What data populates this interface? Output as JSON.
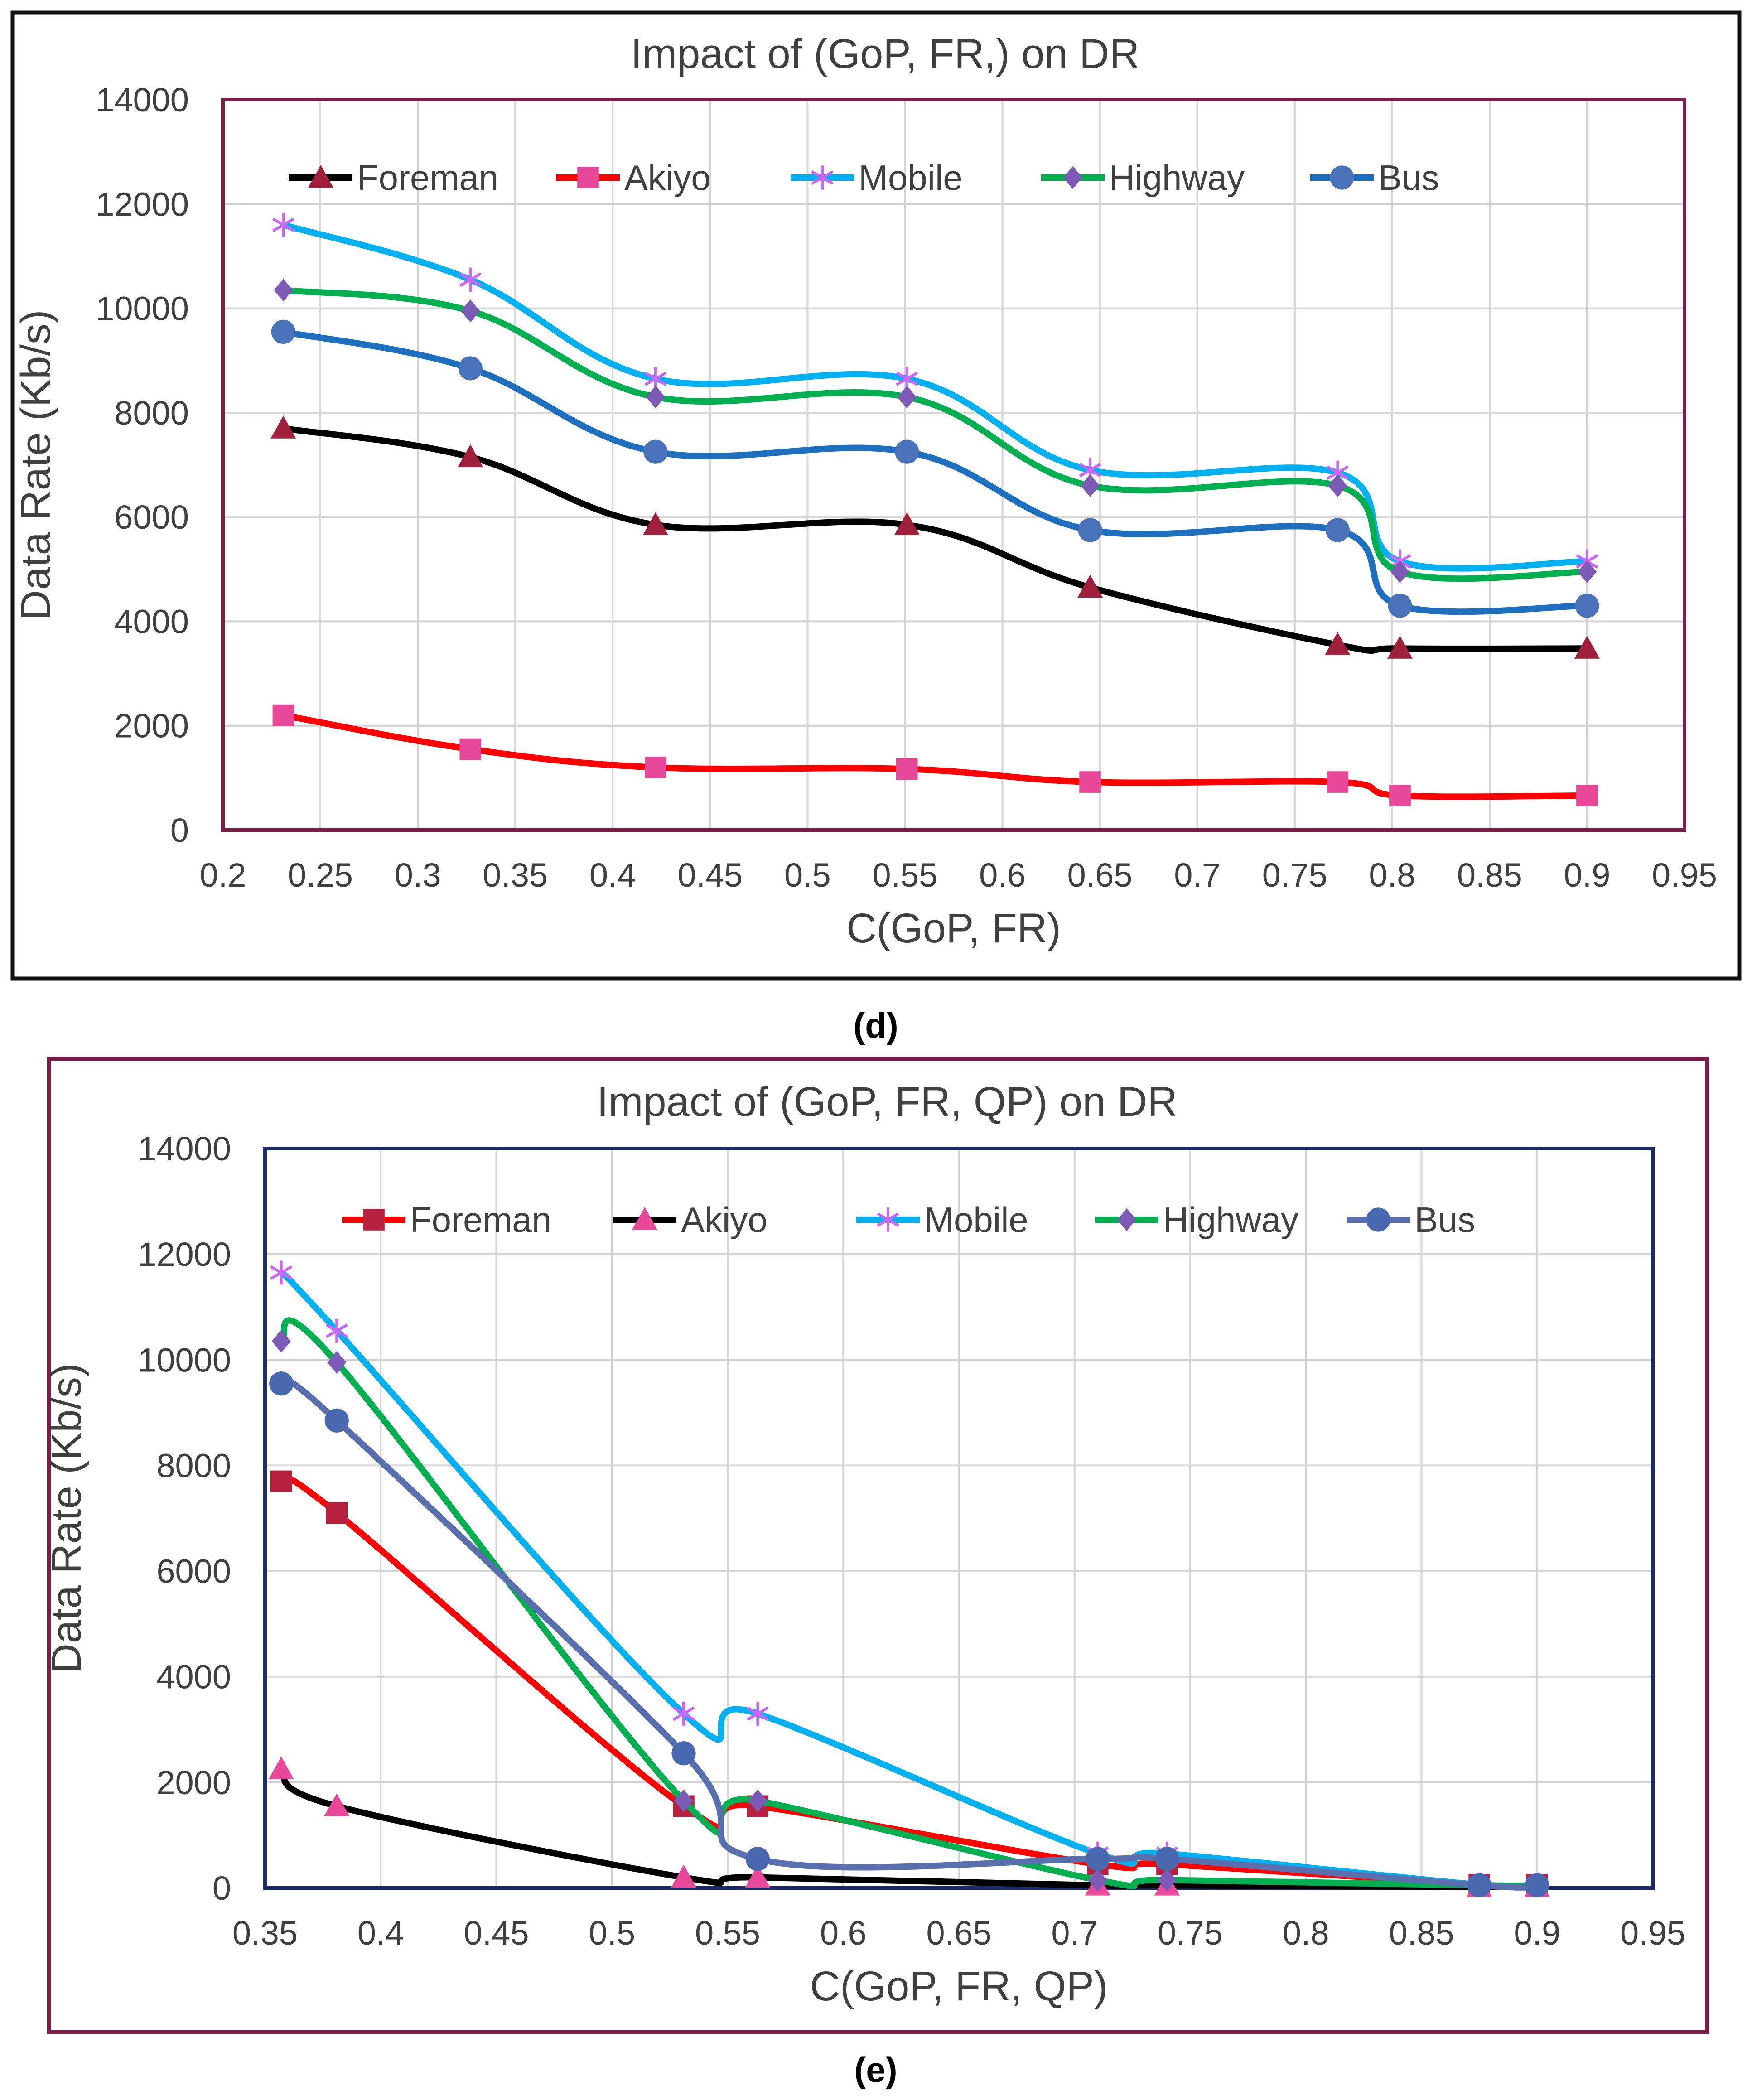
{
  "chart_data": [
    {
      "type": "line",
      "title": "Impact of (GoP, FR,) on DR",
      "xlabel": "C(GoP, FR)",
      "ylabel": "Data Rate (Kb/s)",
      "xlim": [
        0.2,
        0.95
      ],
      "ylim": [
        0,
        14000
      ],
      "xticks": [
        "0.2",
        "0.25",
        "0.3",
        "0.35",
        "0.4",
        "0.45",
        "0.5",
        "0.55",
        "0.6",
        "0.65",
        "0.7",
        "0.75",
        "0.8",
        "0.85",
        "0.9",
        "0.95"
      ],
      "yticks": [
        "0",
        "2000",
        "4000",
        "6000",
        "8000",
        "10000",
        "12000",
        "14000"
      ],
      "grid": true,
      "legend": "top",
      "caption": "(d)",
      "x": [
        0.231,
        0.327,
        0.422,
        0.551,
        0.645,
        0.772,
        0.804,
        0.9
      ],
      "series": [
        {
          "name": "Foreman",
          "color": "#000000",
          "marker": "triangle",
          "marker_color": "#a0203c",
          "values": [
            7700,
            7150,
            5850,
            5850,
            4650,
            3550,
            3480,
            3480
          ]
        },
        {
          "name": "Akiyo",
          "color": "#ff0000",
          "marker": "square",
          "marker_color": "#e8489a",
          "values": [
            2200,
            1550,
            1200,
            1170,
            920,
            920,
            660,
            660
          ]
        },
        {
          "name": "Mobile",
          "color": "#00b0f0",
          "marker": "star",
          "marker_color": "#cc66ff",
          "values": [
            11600,
            10550,
            8650,
            8650,
            6900,
            6850,
            5150,
            5150
          ]
        },
        {
          "name": "Highway",
          "color": "#00b050",
          "marker": "diamond",
          "marker_color": "#7b5bb5",
          "values": [
            10350,
            9950,
            8300,
            8300,
            6600,
            6600,
            4950,
            4950
          ]
        },
        {
          "name": "Bus",
          "color": "#1f6fbf",
          "marker": "circle",
          "marker_color": "#4a72b8",
          "values": [
            9550,
            8850,
            7250,
            7250,
            5750,
            5750,
            4300,
            4300
          ]
        }
      ]
    },
    {
      "type": "line",
      "title": "Impact of (GoP, FR, QP) on DR",
      "xlabel": "C(GoP, FR, QP)",
      "ylabel": "Data Rate (Kb/s)",
      "xlim": [
        0.35,
        0.95
      ],
      "ylim": [
        0,
        14000
      ],
      "xticks": [
        "0.35",
        "0.4",
        "0.45",
        "0.5",
        "0.55",
        "0.6",
        "0.65",
        "0.7",
        "0.75",
        "0.8",
        "0.85",
        "0.9",
        "0.95"
      ],
      "yticks": [
        "0",
        "2000",
        "4000",
        "6000",
        "8000",
        "10000",
        "12000",
        "14000"
      ],
      "grid": true,
      "legend": "top",
      "caption": "(e)",
      "x": [
        0.357,
        0.381,
        0.531,
        0.563,
        0.71,
        0.74,
        0.875,
        0.9
      ],
      "series": [
        {
          "name": "Foreman",
          "color": "#ff0000",
          "marker": "square",
          "marker_color": "#b8203f",
          "values": [
            7700,
            7100,
            1550,
            1550,
            450,
            450,
            60,
            60
          ]
        },
        {
          "name": "Akiyo",
          "color": "#000000",
          "marker": "triangle",
          "marker_color": "#e8489a",
          "values": [
            2250,
            1550,
            200,
            200,
            50,
            50,
            20,
            20
          ]
        },
        {
          "name": "Mobile",
          "color": "#00b0f0",
          "marker": "star",
          "marker_color": "#cc66ff",
          "values": [
            11650,
            10550,
            3300,
            3300,
            650,
            650,
            60,
            60
          ]
        },
        {
          "name": "Highway",
          "color": "#00b050",
          "marker": "diamond",
          "marker_color": "#7b5bb5",
          "values": [
            10350,
            9950,
            1650,
            1650,
            150,
            150,
            50,
            50
          ]
        },
        {
          "name": "Bus",
          "color": "#5a6fae",
          "marker": "circle",
          "marker_color": "#4a68b0",
          "values": [
            9550,
            8850,
            2550,
            550,
            550,
            550,
            50,
            50
          ]
        }
      ]
    }
  ]
}
